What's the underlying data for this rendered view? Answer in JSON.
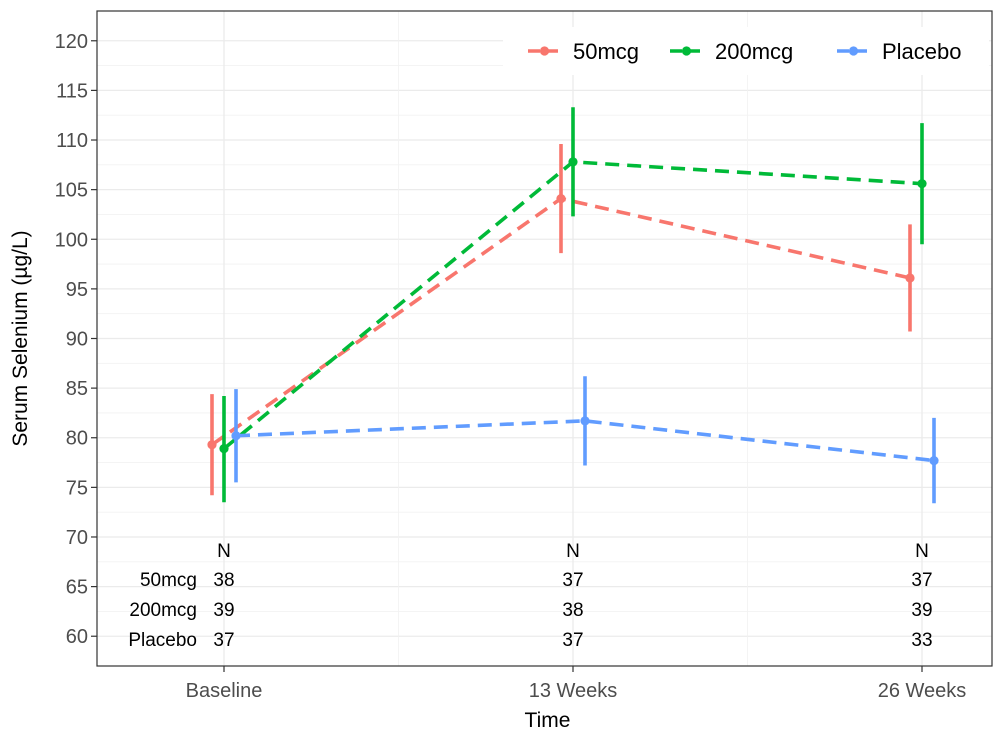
{
  "chart_data": {
    "type": "line",
    "xlabel": "Time",
    "ylabel": "Serum Selenium (µg/L)",
    "categories": [
      "Baseline",
      "13 Weeks",
      "26 Weeks"
    ],
    "ylim": [
      57,
      123
    ],
    "yticks": [
      60,
      65,
      70,
      75,
      80,
      85,
      90,
      95,
      100,
      105,
      110,
      115,
      120
    ],
    "grid": true,
    "legend_position": "top-right",
    "series": [
      {
        "name": "50mcg",
        "color": "#F8766D",
        "values": [
          79.3,
          104.1,
          96.1
        ],
        "lower": [
          74.2,
          98.6,
          90.7
        ],
        "upper": [
          84.4,
          109.6,
          101.5
        ]
      },
      {
        "name": "200mcg",
        "color": "#00BA38",
        "values": [
          78.9,
          107.8,
          105.6
        ],
        "lower": [
          73.5,
          102.3,
          99.5
        ],
        "upper": [
          84.2,
          113.3,
          111.7
        ]
      },
      {
        "name": "Placebo",
        "color": "#619CFF",
        "values": [
          80.2,
          81.7,
          77.7
        ],
        "lower": [
          75.5,
          77.2,
          73.4
        ],
        "upper": [
          84.9,
          86.2,
          82.0
        ]
      }
    ],
    "n_table": {
      "header": "N",
      "rows": [
        {
          "label": "50mcg",
          "values": [
            "38",
            "37",
            "37"
          ]
        },
        {
          "label": "200mcg",
          "values": [
            "39",
            "38",
            "39"
          ]
        },
        {
          "label": "Placebo",
          "values": [
            "37",
            "37",
            "33"
          ]
        }
      ]
    }
  }
}
